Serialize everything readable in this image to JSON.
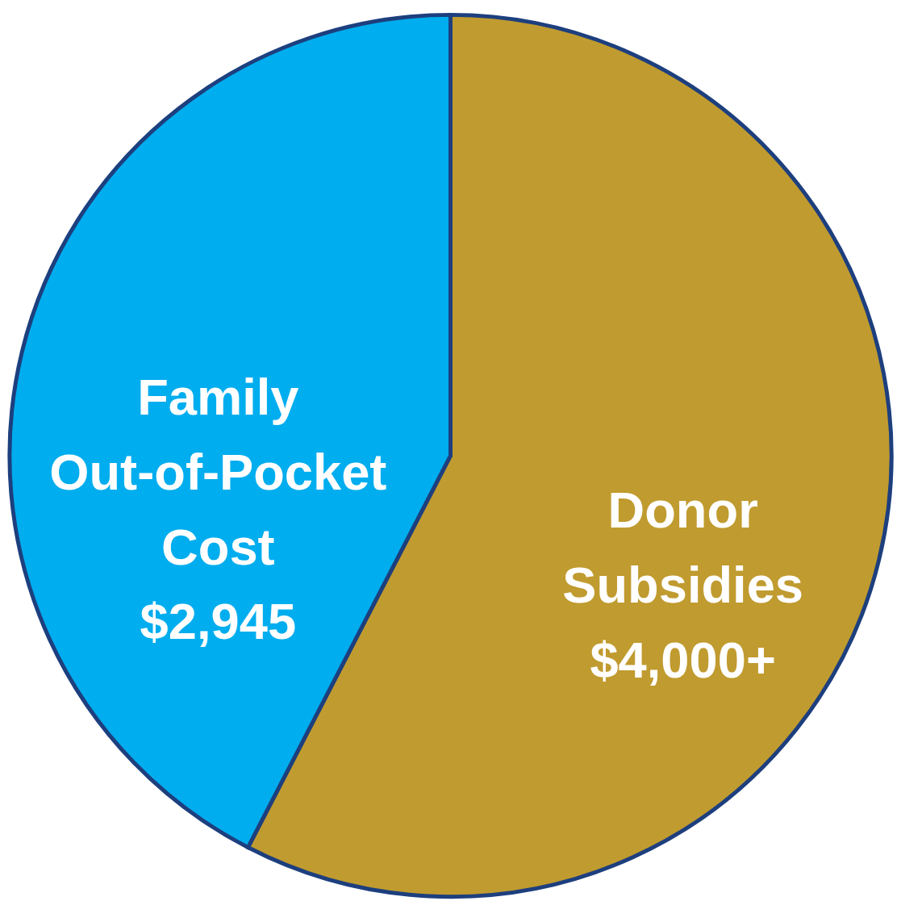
{
  "chart_data": {
    "type": "pie",
    "categories": [
      "Donor Subsidies",
      "Family Out-of-Pocket Cost"
    ],
    "values": [
      4000,
      2945
    ],
    "value_labels": [
      "$4,000+",
      "$2,945"
    ],
    "colors": [
      "#c09b2f",
      "#00adee"
    ],
    "legend": false
  }
}
